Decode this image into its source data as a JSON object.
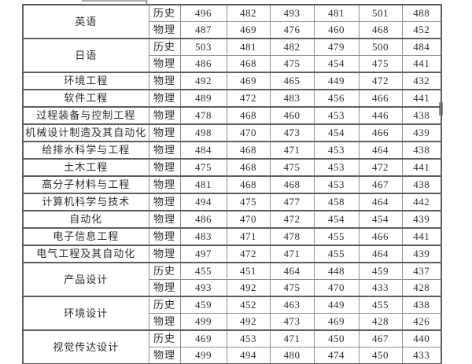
{
  "page": {
    "background": "#ffffff"
  },
  "colors": {
    "border_outer": "#5e5e5e",
    "border_inner": "#8d8d8d",
    "text": "#2e2e2e",
    "fragment_grey": "#ababab",
    "scroll_thumb_grey": "#8f8f8f"
  },
  "chart_data": {
    "type": "table",
    "description_visible_columns": [
      "major",
      "subject",
      "score1",
      "score2",
      "score3",
      "score4",
      "score5",
      "score6"
    ],
    "groups": [
      {
        "major": "英语",
        "rows": [
          {
            "subject": "历史",
            "values": [
              496,
              482,
              493,
              481,
              501,
              488
            ]
          },
          {
            "subject": "物理",
            "values": [
              487,
              469,
              476,
              460,
              468,
              452
            ]
          }
        ]
      },
      {
        "major": "日语",
        "rows": [
          {
            "subject": "历史",
            "values": [
              503,
              481,
              482,
              479,
              500,
              484
            ]
          },
          {
            "subject": "物理",
            "values": [
              486,
              468,
              475,
              454,
              475,
              441
            ]
          }
        ]
      },
      {
        "major": "环境工程",
        "rows": [
          {
            "subject": "物理",
            "values": [
              492,
              469,
              465,
              449,
              472,
              432
            ]
          }
        ]
      },
      {
        "major": "软件工程",
        "rows": [
          {
            "subject": "物理",
            "values": [
              489,
              472,
              483,
              456,
              466,
              441
            ]
          }
        ]
      },
      {
        "major": "过程装备与控制工程",
        "rows": [
          {
            "subject": "物理",
            "values": [
              478,
              468,
              460,
              453,
              446,
              438
            ]
          }
        ]
      },
      {
        "major": "机械设计制造及其自动化",
        "rows": [
          {
            "subject": "物理",
            "values": [
              498,
              470,
              473,
              454,
              466,
              439
            ]
          }
        ]
      },
      {
        "major": "给排水科学与工程",
        "rows": [
          {
            "subject": "物理",
            "values": [
              484,
              468,
              471,
              453,
              464,
              438
            ]
          }
        ]
      },
      {
        "major": "土木工程",
        "rows": [
          {
            "subject": "物理",
            "values": [
              475,
              468,
              475,
              453,
              472,
              441
            ]
          }
        ]
      },
      {
        "major": "高分子材料与工程",
        "rows": [
          {
            "subject": "物理",
            "values": [
              481,
              468,
              468,
              453,
              467,
              438
            ]
          }
        ]
      },
      {
        "major": "计算机科学与技术",
        "rows": [
          {
            "subject": "物理",
            "values": [
              494,
              475,
              477,
              458,
              464,
              442
            ]
          }
        ]
      },
      {
        "major": "自动化",
        "rows": [
          {
            "subject": "物理",
            "values": [
              486,
              470,
              472,
              454,
              454,
              439
            ]
          }
        ]
      },
      {
        "major": "电子信息工程",
        "rows": [
          {
            "subject": "物理",
            "values": [
              483,
              471,
              478,
              455,
              466,
              441
            ]
          }
        ]
      },
      {
        "major": "电气工程及其自动化",
        "rows": [
          {
            "subject": "物理",
            "values": [
              497,
              472,
              471,
              455,
              464,
              439
            ]
          }
        ]
      },
      {
        "major": "产品设计",
        "rows": [
          {
            "subject": "历史",
            "values": [
              455,
              451,
              464,
              448,
              459,
              437
            ]
          },
          {
            "subject": "物理",
            "values": [
              493,
              492,
              475,
              470,
              433,
              428
            ]
          }
        ]
      },
      {
        "major": "环境设计",
        "rows": [
          {
            "subject": "历史",
            "values": [
              459,
              452,
              463,
              449,
              455,
              438
            ]
          },
          {
            "subject": "物理",
            "values": [
              499,
              492,
              473,
              469,
              428,
              426
            ]
          }
        ]
      },
      {
        "major": "视觉传达设计",
        "rows": [
          {
            "subject": "历史",
            "values": [
              469,
              453,
              471,
              450,
              467,
              440
            ]
          },
          {
            "subject": "物理",
            "values": [
              499,
              494,
              480,
              474,
              450,
              433
            ]
          }
        ]
      }
    ]
  }
}
